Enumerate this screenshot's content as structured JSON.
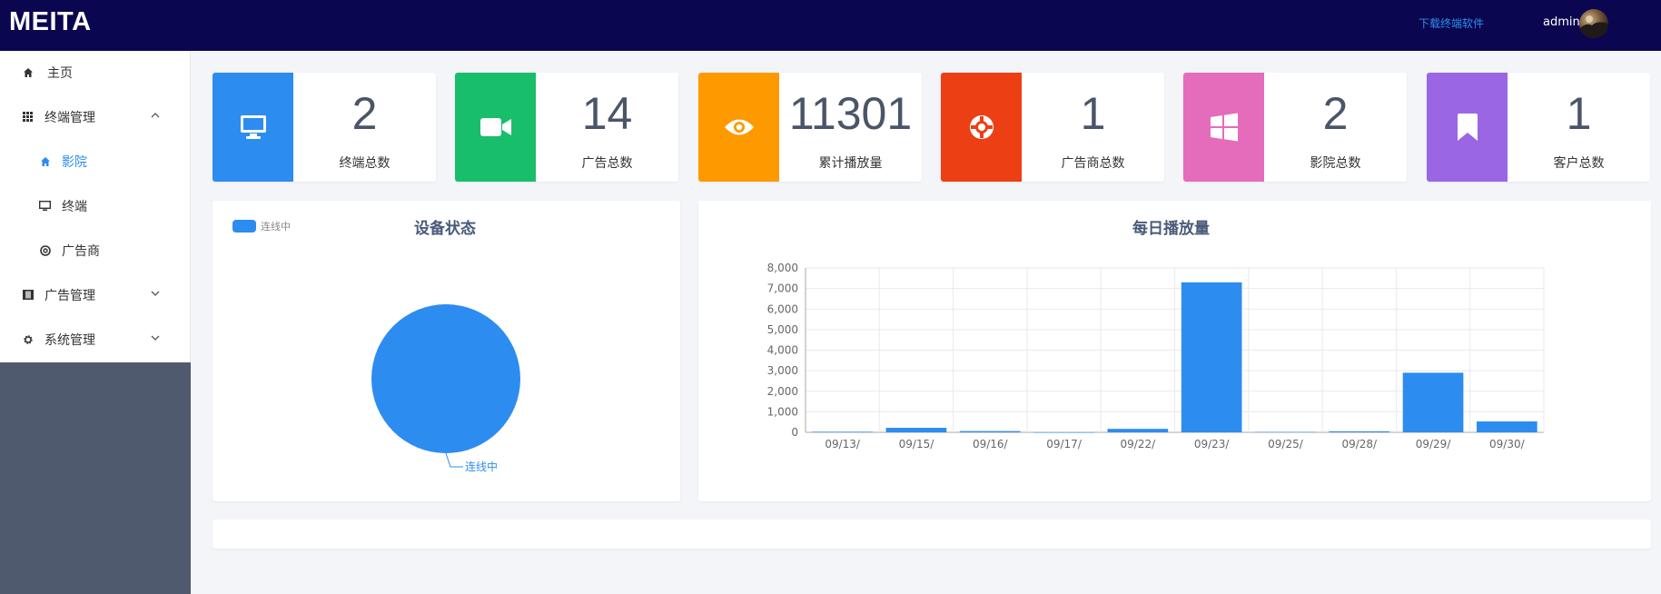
{
  "header": {
    "brand": "MEITA",
    "download_link": "下载终端软件",
    "username": "admin"
  },
  "sidebar": {
    "items": [
      {
        "label": "主页",
        "icon": "home-icon"
      },
      {
        "label": "终端管理",
        "icon": "grid-icon",
        "expanded": true
      },
      {
        "label": "影院",
        "icon": "home-icon",
        "active": true
      },
      {
        "label": "终端",
        "icon": "monitor-icon"
      },
      {
        "label": "广告商",
        "icon": "lifebuoy-icon"
      },
      {
        "label": "广告管理",
        "icon": "film-icon",
        "expanded": false
      },
      {
        "label": "系统管理",
        "icon": "gear-icon",
        "expanded": false
      }
    ]
  },
  "stats": [
    {
      "value": "2",
      "label": "终端总数",
      "color": "#2d8cf0",
      "icon": "monitor-icon"
    },
    {
      "value": "14",
      "label": "广告总数",
      "color": "#19be6b",
      "icon": "video-camera-icon"
    },
    {
      "value": "11301",
      "label": "累计播放量",
      "color": "#ff9900",
      "icon": "eye-icon"
    },
    {
      "value": "1",
      "label": "广告商总数",
      "color": "#ed3f14",
      "icon": "lifebuoy-icon"
    },
    {
      "value": "2",
      "label": "影院总数",
      "color": "#e46cbb",
      "icon": "windows-icon"
    },
    {
      "value": "1",
      "label": "客户总数",
      "color": "#9a66e4",
      "icon": "bookmark-icon"
    }
  ],
  "device_status": {
    "title": "设备状态",
    "chart_data": {
      "type": "pie",
      "legend": [
        "连线中"
      ],
      "slices": [
        {
          "name": "连线中",
          "value": 2,
          "color": "#2d8cf0"
        }
      ]
    }
  },
  "daily_plays": {
    "title": "每日播放量",
    "chart_data": {
      "type": "bar",
      "categories": [
        "09/13/",
        "09/15/",
        "09/16/",
        "09/17/",
        "09/22/",
        "09/23/",
        "09/25/",
        "09/28/",
        "09/29/",
        "09/30/"
      ],
      "values": [
        30,
        220,
        60,
        0,
        170,
        7300,
        20,
        50,
        2900,
        530
      ],
      "ylim": [
        0,
        8000
      ],
      "yticks": [
        "0",
        "1,000",
        "2,000",
        "3,000",
        "4,000",
        "5,000",
        "6,000",
        "7,000",
        "8,000"
      ],
      "color": "#2d8cf0",
      "grid": true
    }
  }
}
